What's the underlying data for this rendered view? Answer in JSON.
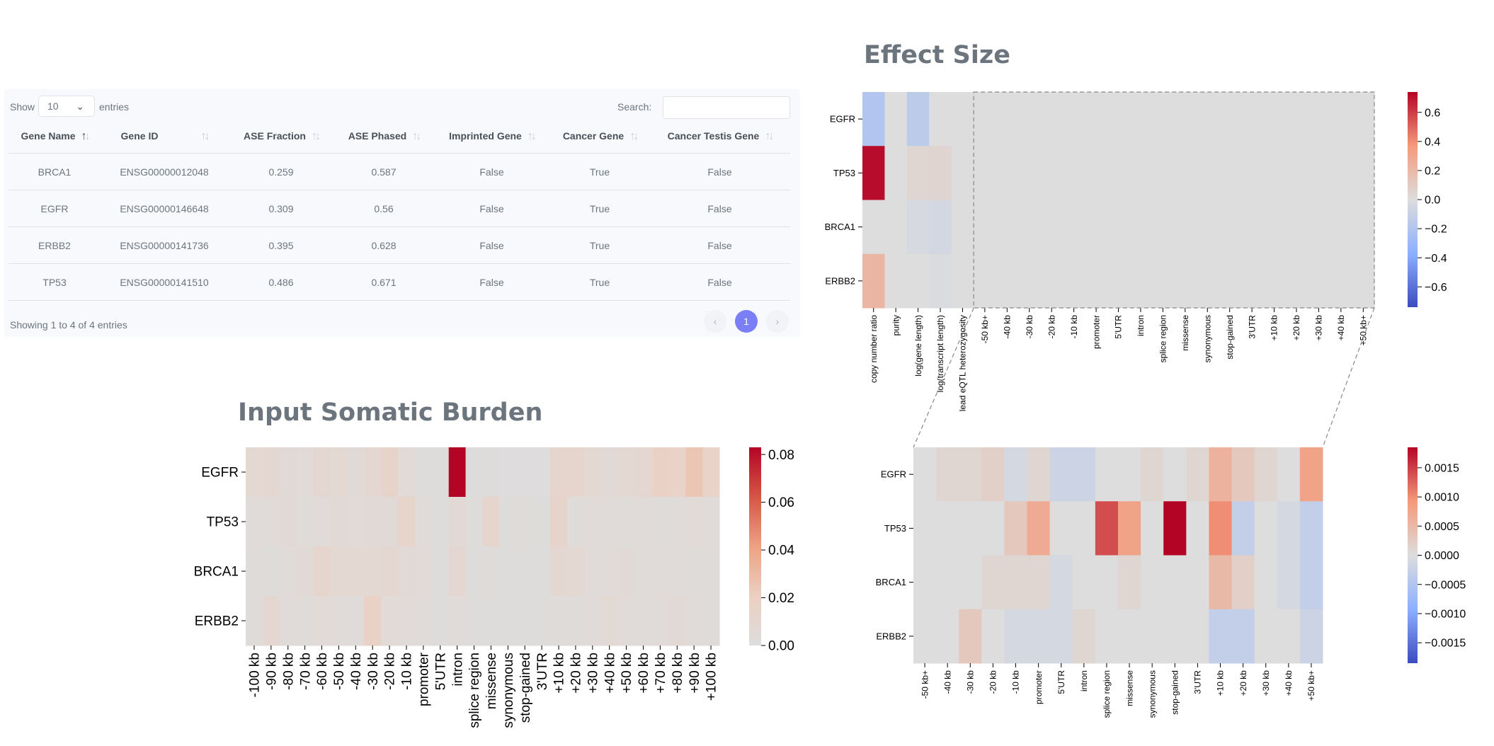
{
  "table": {
    "show_label": "Show",
    "entries_label": "entries",
    "length_value": "10",
    "search_label": "Search:",
    "search_value": "",
    "columns": [
      "Gene Name",
      "Gene ID",
      "ASE Fraction",
      "ASE Phased",
      "Imprinted Gene",
      "Cancer Gene",
      "Cancer Testis Gene"
    ],
    "sorted_column": "Gene Name",
    "rows": [
      [
        "BRCA1",
        "ENSG00000012048",
        "0.259",
        "0.587",
        "False",
        "True",
        "False"
      ],
      [
        "EGFR",
        "ENSG00000146648",
        "0.309",
        "0.56",
        "False",
        "True",
        "False"
      ],
      [
        "ERBB2",
        "ENSG00000141736",
        "0.395",
        "0.628",
        "False",
        "True",
        "False"
      ],
      [
        "TP53",
        "ENSG00000141510",
        "0.486",
        "0.671",
        "False",
        "True",
        "False"
      ]
    ],
    "info": "Showing 1 to 4 of 4 entries",
    "pagination": {
      "prev": "‹",
      "current": "1",
      "next": "›"
    },
    "accent_color": "#7b7ff5"
  },
  "chart_data": [
    {
      "id": "burden",
      "type": "heatmap",
      "title": "Input Somatic Burden",
      "rows": [
        "EGFR",
        "TP53",
        "BRCA1",
        "ERBB2"
      ],
      "columns": [
        "-100 kb",
        "-90 kb",
        "-80 kb",
        "-70 kb",
        "-60 kb",
        "-50 kb",
        "-40 kb",
        "-30 kb",
        "-20 kb",
        "-10 kb",
        "promoter",
        "5'UTR",
        "intron",
        "splice region",
        "missense",
        "synonymous",
        "stop-gained",
        "3'UTR",
        "+10 kb",
        "+20 kb",
        "+30 kb",
        "+40 kb",
        "+50 kb",
        "+60 kb",
        "+70 kb",
        "+80 kb",
        "+90 kb",
        "+100 kb"
      ],
      "values": [
        [
          0.008,
          0.01,
          0.006,
          0.005,
          0.01,
          0.008,
          0.006,
          0.009,
          0.013,
          0.005,
          0.002,
          0.002,
          0.083,
          0.002,
          0.002,
          0.001,
          0.001,
          0.001,
          0.012,
          0.012,
          0.008,
          0.006,
          0.008,
          0.009,
          0.018,
          0.016,
          0.025,
          0.016
        ],
        [
          0.004,
          0.004,
          0.006,
          0.003,
          0.004,
          0.006,
          0.004,
          0.006,
          0.006,
          0.014,
          0.004,
          0.002,
          0.007,
          0.002,
          0.012,
          0.002,
          0.003,
          0.002,
          0.013,
          0.003,
          0.004,
          0.004,
          0.003,
          0.004,
          0.003,
          0.003,
          0.005,
          0.004
        ],
        [
          0.003,
          0.002,
          0.004,
          0.006,
          0.012,
          0.008,
          0.008,
          0.008,
          0.009,
          0.006,
          0.004,
          0.002,
          0.01,
          0.002,
          0.003,
          0.002,
          0.002,
          0.002,
          0.009,
          0.008,
          0.004,
          0.004,
          0.006,
          0.003,
          0.004,
          0.004,
          0.003,
          0.003
        ],
        [
          0.003,
          0.009,
          0.004,
          0.003,
          0.005,
          0.004,
          0.004,
          0.018,
          0.005,
          0.004,
          0.004,
          0.002,
          0.004,
          0.002,
          0.002,
          0.002,
          0.002,
          0.002,
          0.003,
          0.003,
          0.004,
          0.007,
          0.004,
          0.004,
          0.004,
          0.007,
          0.004,
          0.003
        ]
      ],
      "vmin": 0,
      "vmax": 0.083,
      "colorbar_ticks": [
        0.0,
        0.02,
        0.04,
        0.06,
        0.08
      ],
      "colorbar_labels": [
        "0.00",
        "0.02",
        "0.04",
        "0.06",
        "0.08"
      ]
    },
    {
      "id": "effect",
      "type": "heatmap",
      "title": "Effect Size",
      "rows": [
        "EGFR",
        "TP53",
        "BRCA1",
        "ERBB2"
      ],
      "columns": [
        "copy number ratio",
        "purity",
        "log(gene length)",
        "log(transcript length)",
        "lead eQTL heterozygosity",
        "-50 kb+",
        "-40 kb",
        "-30 kb",
        "-20 kb",
        "-10 kb",
        "promoter",
        "5'UTR",
        "intron",
        "splice region",
        "missense",
        "synonymous",
        "stop-gained",
        "3'UTR",
        "+10 kb",
        "+20 kb",
        "+30 kb",
        "+40 kb",
        "+50 kb+"
      ],
      "values": [
        [
          -0.2,
          0.0,
          -0.15,
          0.0,
          0.0,
          0,
          0,
          0,
          0,
          0,
          0,
          0,
          0,
          0,
          0,
          0,
          0,
          0,
          0,
          0,
          0,
          0,
          0
        ],
        [
          0.72,
          0.0,
          0.04,
          0.05,
          0.0,
          0,
          0,
          0,
          0,
          0,
          0,
          0,
          0,
          0,
          0,
          0,
          0,
          0,
          0,
          0,
          0,
          0,
          0
        ],
        [
          0.0,
          0.0,
          -0.03,
          -0.05,
          0.0,
          0,
          0,
          0,
          0,
          0,
          0,
          0,
          0,
          0,
          0,
          0,
          0,
          0,
          0,
          0,
          0,
          0,
          0
        ],
        [
          0.22,
          0.0,
          0.0,
          -0.02,
          0.0,
          0,
          0,
          0,
          0,
          0,
          0,
          0,
          0,
          0,
          0,
          0,
          0,
          0,
          0,
          0,
          0,
          0,
          0
        ]
      ],
      "vmin": -0.74,
      "vmax": 0.74,
      "colorbar_ticks": [
        0.6,
        0.4,
        0.2,
        0.0,
        -0.2,
        -0.4,
        -0.6
      ],
      "colorbar_labels": [
        "0.6",
        "0.4",
        "0.2",
        "0.0",
        "−0.2",
        "−0.4",
        "−0.6"
      ],
      "zoom_start_column": 5
    },
    {
      "id": "zoom",
      "type": "heatmap",
      "title": "",
      "rows": [
        "EGFR",
        "TP53",
        "BRCA1",
        "ERBB2"
      ],
      "columns": [
        "-50 kb+",
        "-40 kb",
        "-30 kb",
        "-20 kb",
        "-10 kb",
        "promoter",
        "5'UTR",
        "intron",
        "splice region",
        "missense",
        "synonymous",
        "stop-gained",
        "3'UTR",
        "+10 kb",
        "+20 kb",
        "+30 kb",
        "+40 kb",
        "+50 kb+"
      ],
      "values": [
        [
          0.0,
          0.0001,
          0.0001,
          0.0002,
          -0.0001,
          0.0001,
          -0.0002,
          -0.0002,
          0.0,
          0.0,
          0.0001,
          0.0,
          0.0001,
          0.0006,
          0.0003,
          0.0001,
          0.0,
          0.0008
        ],
        [
          0.0,
          0.0,
          0.0,
          0.0,
          0.0003,
          0.0007,
          0.0,
          0.0,
          0.0014,
          0.0008,
          0.0,
          0.0019,
          0.0,
          0.001,
          -0.0003,
          0.0,
          -0.0001,
          -0.0003
        ],
        [
          0.0,
          0.0,
          0.0,
          0.0001,
          0.0001,
          0.0001,
          -0.0001,
          0.0,
          0.0,
          0.0001,
          0.0,
          0.0,
          0.0,
          0.0005,
          0.0002,
          0.0,
          -0.0001,
          -0.0003
        ],
        [
          0.0,
          0.0,
          0.0003,
          0.0,
          -0.0001,
          -0.0001,
          -0.0001,
          0.0001,
          0.0,
          0.0,
          0.0,
          0.0,
          0.0,
          -0.0003,
          -0.0003,
          0.0,
          0.0,
          -0.0002
        ]
      ],
      "vmin": -0.00185,
      "vmax": 0.00185,
      "colorbar_ticks": [
        0.0015,
        0.001,
        0.0005,
        0.0,
        -0.0005,
        -0.001,
        -0.0015
      ],
      "colorbar_labels": [
        "0.0015",
        "0.0010",
        "0.0005",
        "0.0000",
        "−0.0005",
        "−0.0010",
        "−0.0015"
      ]
    }
  ]
}
